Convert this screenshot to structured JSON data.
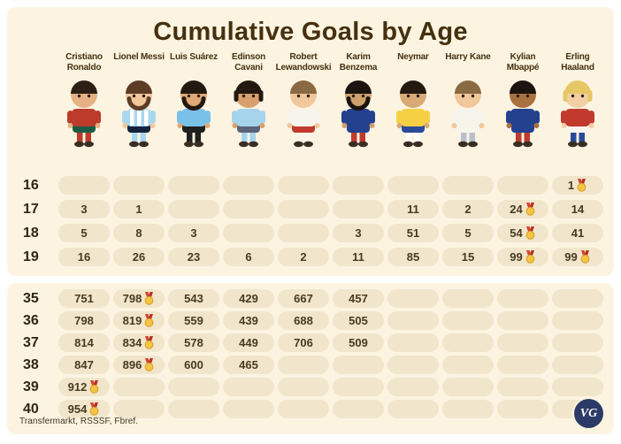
{
  "title": "Cumulative Goals by Age",
  "footer": {
    "source": "Transfermarkt, RSSSF, Fbref.",
    "logo_text": "VG"
  },
  "colors": {
    "page_bg": "#ffffff",
    "panel_bg": "#fcf4e1",
    "cell_bg": "#f1e6cc",
    "title_text": "#45300f",
    "value_text": "#473a1f",
    "medal_gold": "#f4c544",
    "medal_gold_edge": "#d99c22",
    "medal_ribbon": "#d6452f",
    "logo_bg": "#2b3a66"
  },
  "players": [
    {
      "name": "Cristiano Ronaldo",
      "skin": "#e6b183",
      "hair": "#2e1f14",
      "shirt": "#bc3b2b",
      "shorts": "#1c5c46",
      "socks": "#bc3b2b"
    },
    {
      "name": "Lionel Messi",
      "skin": "#f1c79c",
      "hair": "#5d3d26",
      "beard": true,
      "shirt": "#a9d8ee",
      "stripes": "#ffffff",
      "shorts": "#16233f",
      "socks": "#a9d8ee"
    },
    {
      "name": "Luis Suárez",
      "skin": "#e0a876",
      "hair": "#241910",
      "beard": true,
      "shirt": "#79c1e8",
      "shorts": "#1f1f1f",
      "socks": "#1f1f1f"
    },
    {
      "name": "Edinson Cavani",
      "skin": "#d9a06e",
      "hair": "#241910",
      "long_hair": true,
      "shirt": "#a5d4ec",
      "shorts": "#5b6378",
      "socks": "#a5d4ec"
    },
    {
      "name": "Robert Lewandowski",
      "skin": "#f1c79c",
      "hair": "#8a6a43",
      "shirt": "#f7f4ec",
      "shorts": "#c13a2d",
      "socks": "#f7f4ec"
    },
    {
      "name": "Karim Benzema",
      "skin": "#cfa06b",
      "hair": "#1c1410",
      "beard": true,
      "shirt": "#24418e",
      "shorts": "#24418e",
      "socks": "#c13a2d"
    },
    {
      "name": "Neymar",
      "skin": "#d9a976",
      "hair": "#241a10",
      "shirt": "#f6d043",
      "shorts": "#2a4a9b",
      "socks": "#ffffff"
    },
    {
      "name": "Harry Kane",
      "skin": "#f1c79c",
      "hair": "#8a6a43",
      "shirt": "#f7f4ec",
      "shorts": "#f7f4ec",
      "socks": "#b9c0cc"
    },
    {
      "name": "Kylian Mbappé",
      "skin": "#a9713f",
      "hair": "#1c140e",
      "shirt": "#24418e",
      "shorts": "#24418e",
      "socks": "#c13a2d"
    },
    {
      "name": "Erling Haaland",
      "skin": "#f3cfa6",
      "hair": "#e6c766",
      "long_hair": true,
      "shirt": "#c13a2d",
      "shorts": "#f7f4ec",
      "socks": "#2a4a9b"
    }
  ],
  "chart_data": {
    "type": "table",
    "title": "Cumulative Goals by Age",
    "row_label": "Age",
    "columns": [
      "Cristiano Ronaldo",
      "Lionel Messi",
      "Luis Suárez",
      "Edinson Cavani",
      "Robert Lewandowski",
      "Karim Benzema",
      "Neymar",
      "Harry Kane",
      "Kylian Mbappé",
      "Erling Haaland"
    ],
    "top_rows": [
      {
        "age": "16",
        "cells": [
          null,
          null,
          null,
          null,
          null,
          null,
          null,
          null,
          null,
          {
            "v": 1,
            "medal": true
          }
        ]
      },
      {
        "age": "17",
        "cells": [
          3,
          1,
          null,
          null,
          null,
          null,
          11,
          2,
          {
            "v": 24,
            "medal": true
          },
          14
        ]
      },
      {
        "age": "18",
        "cells": [
          5,
          8,
          3,
          null,
          null,
          3,
          51,
          5,
          {
            "v": 54,
            "medal": true
          },
          41
        ]
      },
      {
        "age": "19",
        "cells": [
          16,
          26,
          23,
          6,
          2,
          11,
          85,
          15,
          {
            "v": 99,
            "medal": true
          },
          {
            "v": 99,
            "medal": true
          }
        ]
      }
    ],
    "bottom_rows": [
      {
        "age": "35",
        "cells": [
          751,
          {
            "v": 798,
            "medal": true
          },
          543,
          429,
          667,
          457,
          null,
          null,
          null,
          null
        ]
      },
      {
        "age": "36",
        "cells": [
          798,
          {
            "v": 819,
            "medal": true
          },
          559,
          439,
          688,
          505,
          null,
          null,
          null,
          null
        ]
      },
      {
        "age": "37",
        "cells": [
          814,
          {
            "v": 834,
            "medal": true
          },
          578,
          449,
          706,
          509,
          null,
          null,
          null,
          null
        ]
      },
      {
        "age": "38",
        "cells": [
          847,
          {
            "v": 896,
            "medal": true
          },
          600,
          465,
          null,
          null,
          null,
          null,
          null,
          null
        ]
      },
      {
        "age": "39",
        "cells": [
          {
            "v": 912,
            "medal": true
          },
          null,
          null,
          null,
          null,
          null,
          null,
          null,
          null,
          null
        ]
      },
      {
        "age": "40",
        "cells": [
          {
            "v": 954,
            "medal": true
          },
          null,
          null,
          null,
          null,
          null,
          null,
          null,
          null,
          null
        ]
      }
    ]
  }
}
